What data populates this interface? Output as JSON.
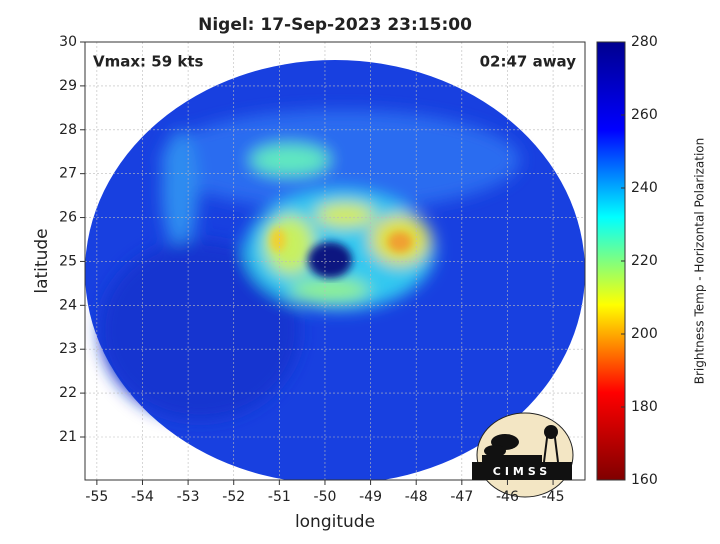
{
  "chart_data": {
    "type": "heatmap",
    "title": "Nigel: 17-Sep-2023 23:15:00",
    "annotations": [
      "Vmax: 59 kts",
      "02:47 away"
    ],
    "x_label": "longitude",
    "y_label": "latitude",
    "xlim": [
      -55.26,
      -44.3
    ],
    "xticks": [
      -55,
      -54,
      -53,
      -52,
      -51,
      -50,
      -49,
      -48,
      -47,
      -46,
      -45
    ],
    "ylim": [
      20.02,
      30
    ],
    "yticks": [
      21,
      22,
      23,
      24,
      25,
      26,
      27,
      28,
      29,
      30
    ],
    "grid": true,
    "colormap": "jet",
    "colorbar": {
      "label": "Brightness Temp - Horizontal Polarization",
      "clim": [
        160,
        280
      ],
      "ticks": [
        160,
        180,
        200,
        220,
        240,
        260,
        280
      ]
    },
    "logo": "CIMSS"
  }
}
